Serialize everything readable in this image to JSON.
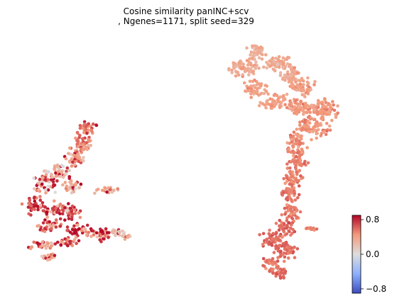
{
  "chart_data": {
    "type": "scatter",
    "title_line1": "Cosine similarity panINC+scv",
    "title_line2": ", Ngenes=1171, split seed=329",
    "xlabel": "",
    "ylabel": "",
    "axes_visible": false,
    "grid": false,
    "colormap": "coolwarm",
    "color_range": [
      -0.9,
      0.9
    ],
    "colorbar": {
      "ticks": [
        0.8,
        0.0,
        -0.8
      ],
      "tick_labels": [
        "0.8",
        "0.0",
        "−0.8"
      ],
      "placement": "right"
    },
    "cluster_notes": {
      "left_cluster": "mixed values from about 0.0 to 0.9, many dark red points",
      "right_cluster": "mostly light to medium salmon, about 0.3 to 0.6"
    }
  },
  "colors": {
    "strong_red": "#b40426",
    "salmon": "#f08a6c",
    "light_salmon": "#f4c0a4",
    "neutral_gray": "#dddddd",
    "blue": "#3b4cc0"
  }
}
